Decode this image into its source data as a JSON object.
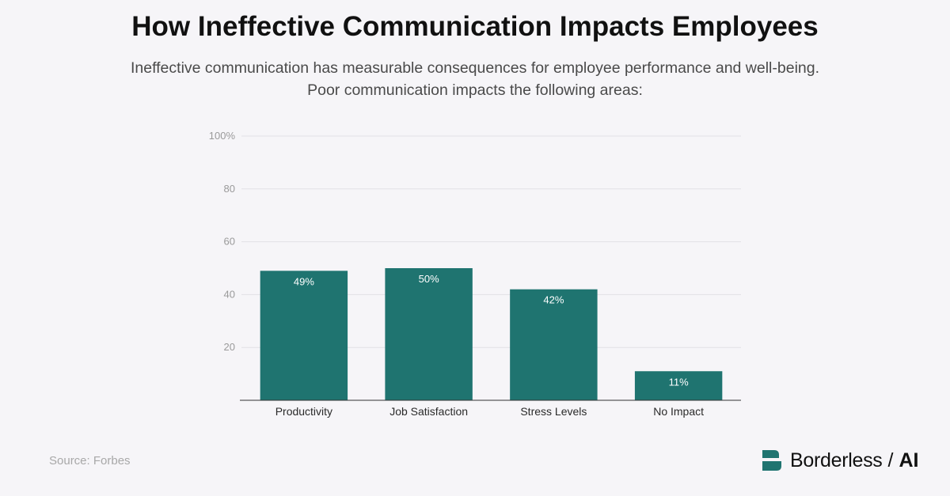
{
  "header": {
    "title": "How Ineffective Communication Impacts Employees",
    "subtitle_line1": "Ineffective communication has measurable consequences for employee performance and well-being.",
    "subtitle_line2": "Poor communication impacts the following areas:"
  },
  "footer": {
    "source": "Source: Forbes",
    "brand_name": "Borderless",
    "brand_separator": "/",
    "brand_suffix": "AI",
    "brand_color": "#1f7470"
  },
  "chart_data": {
    "type": "bar",
    "title": "",
    "xlabel": "",
    "ylabel": "",
    "categories": [
      "Productivity",
      "Job Satisfaction",
      "Stress Levels",
      "No Impact"
    ],
    "values": [
      49,
      50,
      42,
      11
    ],
    "value_labels": [
      "49%",
      "50%",
      "42%",
      "11%"
    ],
    "ylim": [
      0,
      100
    ],
    "yticks": [
      20,
      40,
      60,
      80,
      100
    ],
    "ytick_labels": [
      "20",
      "40",
      "60",
      "80",
      "100%"
    ],
    "grid": true,
    "bar_color": "#1f7470",
    "legend": "none"
  }
}
